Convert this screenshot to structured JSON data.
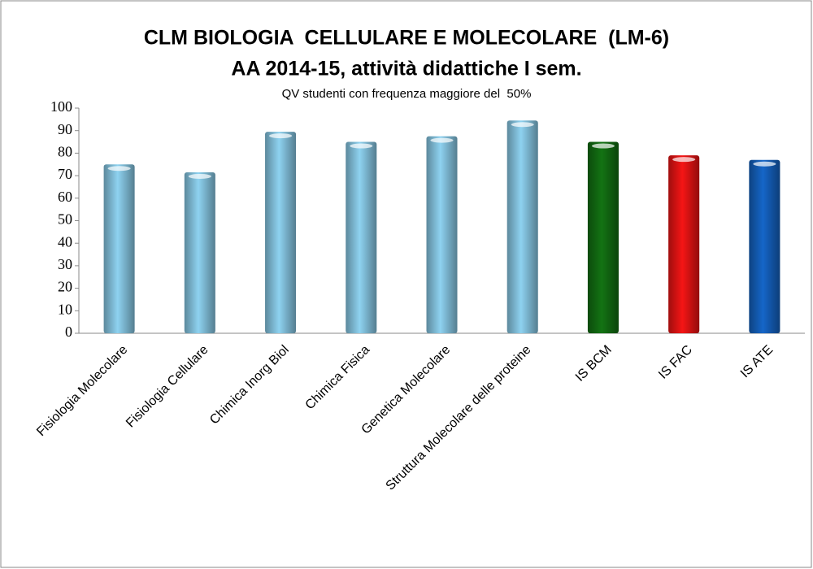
{
  "chart_data": {
    "type": "bar",
    "title": [
      "CLM BIOLOGIA  CELLULARE E MOLECOLARE  (LM-6)",
      "AA 2014-15, attività didattiche I sem."
    ],
    "subtitle": "QV studenti con frequenza maggiore del  50%",
    "categories": [
      "Fisiologia Molecolare",
      "Fisiologia Cellulare",
      "Chimica Inorg Biol",
      "Chimica Fisica",
      "Genetica Molecolare",
      "Struttura Molecolare delle proteine",
      "IS BCM",
      "IS FAC",
      "IS ATE"
    ],
    "values": [
      75,
      71.5,
      89.5,
      85,
      87.5,
      94.5,
      85,
      79,
      77
    ],
    "colors": [
      "#8ed2f0",
      "#8ed2f0",
      "#8ed2f0",
      "#8ed2f0",
      "#8ed2f0",
      "#8ed2f0",
      "#137313",
      "#f51515",
      "#1566c8"
    ],
    "ylim": [
      0,
      100
    ],
    "yticks": [
      0,
      10,
      20,
      30,
      40,
      50,
      60,
      70,
      80,
      90,
      100
    ],
    "grid": false
  }
}
